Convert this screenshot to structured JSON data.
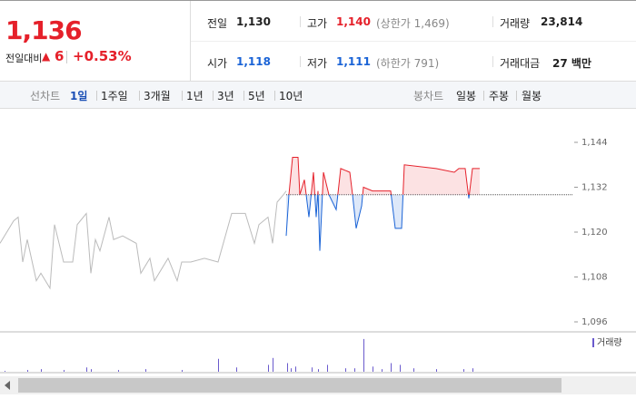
{
  "header": {
    "price": "1,136",
    "change_label": "전일대비",
    "change": "6",
    "change_pct": "+0.53%",
    "stats": [
      {
        "label": "전일",
        "value": "1,130"
      },
      {
        "label": "고가",
        "value": "1,140",
        "note": "(상한가 1,469)"
      },
      {
        "label": "거래량",
        "value": "23,814"
      },
      {
        "label": "시가",
        "value": "1,118"
      },
      {
        "label": "저가",
        "value": "1,111",
        "note": "(하한가 791)"
      },
      {
        "label": "거래대금",
        "value": "27 백만"
      }
    ]
  },
  "toolbar": {
    "line_label": "선차트",
    "periods": [
      "1일",
      "1주일",
      "3개월",
      "1년",
      "3년",
      "5년",
      "10년"
    ],
    "candle_label": "봉차트",
    "candles": [
      "일봉",
      "주봉",
      "월봉"
    ]
  },
  "chart_data": {
    "type": "line",
    "baseline": 1130,
    "ylim": [
      1096,
      1144
    ],
    "yticks": [
      {
        "value": 1096,
        "label": "1,096"
      },
      {
        "value": 1108,
        "label": "1,108"
      },
      {
        "value": 1120,
        "label": "1,120"
      },
      {
        "value": 1132,
        "label": "1,132"
      },
      {
        "value": 1144,
        "label": "1,144"
      }
    ],
    "xlim": [
      0,
      630
    ],
    "series": [
      {
        "color": "#bbbbbb",
        "x": [
          0,
          15,
          20,
          25,
          30,
          40,
          45,
          55,
          60,
          70,
          80,
          85,
          95,
          100,
          105,
          110,
          120,
          125,
          135,
          150,
          155,
          165,
          170,
          185,
          195,
          200,
          210,
          225,
          240,
          255,
          270,
          280,
          285,
          295,
          300,
          305,
          312,
          315
        ],
        "values": [
          1117,
          1123,
          1124,
          1112,
          1118,
          1107,
          1109,
          1105,
          1122,
          1112,
          1112,
          1122,
          1125,
          1109,
          1118,
          1115,
          1124,
          1118,
          1119,
          1117,
          1109,
          1113,
          1107,
          1113,
          1107,
          1112,
          1112,
          1113,
          1112,
          1125,
          1125,
          1117,
          1122,
          1124,
          1117,
          1128,
          1130,
          1131
        ]
      },
      {
        "up_color": "#e5202a",
        "down_color": "#1a63d6",
        "x": [
          315,
          318,
          322,
          328,
          330,
          335,
          340,
          345,
          348,
          350,
          352,
          356,
          362,
          370,
          375,
          385,
          388,
          392,
          398,
          400,
          410,
          430,
          435,
          442,
          445,
          480,
          500,
          505,
          512,
          516,
          520,
          528
        ],
        "values": [
          1119,
          1130,
          1140,
          1140,
          1130,
          1134,
          1124,
          1136,
          1124,
          1131,
          1115,
          1136,
          1130,
          1126,
          1137,
          1136,
          1130,
          1121,
          1127,
          1132,
          1131,
          1131,
          1121,
          1121,
          1138,
          1137,
          1136,
          1137,
          1137,
          1129,
          1137,
          1137
        ]
      }
    ],
    "volume": {
      "name": "거래량",
      "color": "#6a5acd",
      "ylim": [
        0,
        40
      ],
      "x": [
        5,
        30,
        45,
        70,
        95,
        100,
        130,
        160,
        200,
        240,
        260,
        295,
        300,
        316,
        320,
        325,
        343,
        350,
        360,
        380,
        390,
        400,
        410,
        420,
        430,
        440,
        455,
        480,
        510,
        520
      ],
      "values": [
        1,
        2,
        3,
        2,
        5,
        3,
        2,
        3,
        2,
        15,
        5,
        8,
        16,
        10,
        4,
        6,
        5,
        3,
        8,
        4,
        4,
        38,
        6,
        3,
        10,
        8,
        4,
        3,
        3,
        4
      ]
    }
  }
}
